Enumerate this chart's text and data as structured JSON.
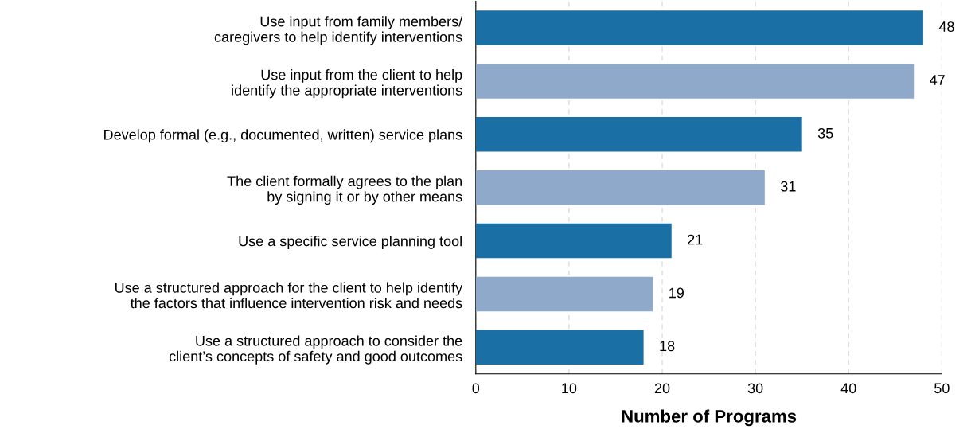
{
  "chart_data": {
    "type": "bar",
    "orientation": "horizontal",
    "xlabel": "Number of Programs",
    "categories": [
      "Use input from family members/\ncaregivers to help identify interventions",
      "Use input from the client to help\nidentify the appropriate interventions",
      "Develop formal (e.g., documented, written) service plans",
      "The client formally agrees to the plan\nby signing it or by other means",
      "Use a specific service planning tool",
      "Use a structured approach for the client to help identify\nthe factors that influence intervention risk and needs",
      "Use a structured approach to consider the\nclient’s concepts of safety and good outcomes"
    ],
    "values": [
      48,
      47,
      35,
      31,
      21,
      19,
      18
    ],
    "colors": [
      "#1a6fa5",
      "#8fa9ca",
      "#1a6fa5",
      "#8fa9ca",
      "#1a6fa5",
      "#8fa9ca",
      "#1a6fa5"
    ],
    "xlim": [
      0,
      50
    ],
    "xticks": [
      0,
      10,
      20,
      30,
      40,
      50
    ],
    "grid": "x",
    "data_labels": true
  }
}
